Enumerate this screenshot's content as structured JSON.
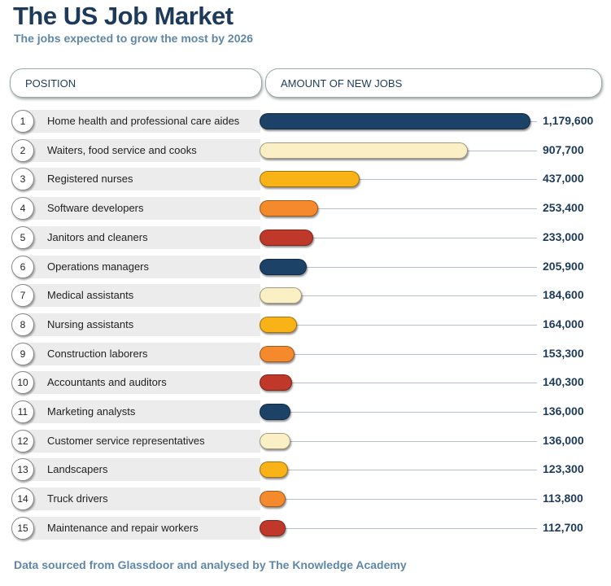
{
  "chart_data": {
    "type": "bar",
    "title": "The US Job Market",
    "subtitle": "The jobs expected to grow the most by 2026",
    "column_headers": [
      "POSITION",
      "AMOUNT OF NEW JOBS"
    ],
    "categories": [
      "Home health and professional care aides",
      "Waiters, food service and cooks",
      "Registered nurses",
      "Software developers",
      "Janitors and cleaners",
      "Operations managers",
      "Medical assistants",
      "Nursing assistants",
      "Construction laborers",
      "Accountants and auditors",
      "Marketing analysts",
      "Customer service representatives",
      "Landscapers",
      "Truck drivers",
      "Maintenance and repair workers"
    ],
    "ranks": [
      "1",
      "2",
      "3",
      "4",
      "5",
      "6",
      "7",
      "8",
      "9",
      "10",
      "11",
      "12",
      "13",
      "14",
      "15"
    ],
    "values": [
      1179600,
      907700,
      437000,
      253400,
      233000,
      205900,
      184600,
      164000,
      153300,
      140300,
      136000,
      136000,
      123300,
      113800,
      112700
    ],
    "value_labels": [
      "1,179,600",
      "907,700",
      "437,000",
      "253,400",
      "233,000",
      "205,900",
      "184,600",
      "164,000",
      "153,300",
      "140,300",
      "136,000",
      "136,000",
      "123,300",
      "113,800",
      "112,700"
    ],
    "colors": [
      "#1d4268",
      "#fbefc6",
      "#f9b316",
      "#f58a2c",
      "#c0382a"
    ],
    "orientation": "horizontal",
    "footer": "Data sourced from Glassdoor and analysed by The Knowledge Academy"
  }
}
